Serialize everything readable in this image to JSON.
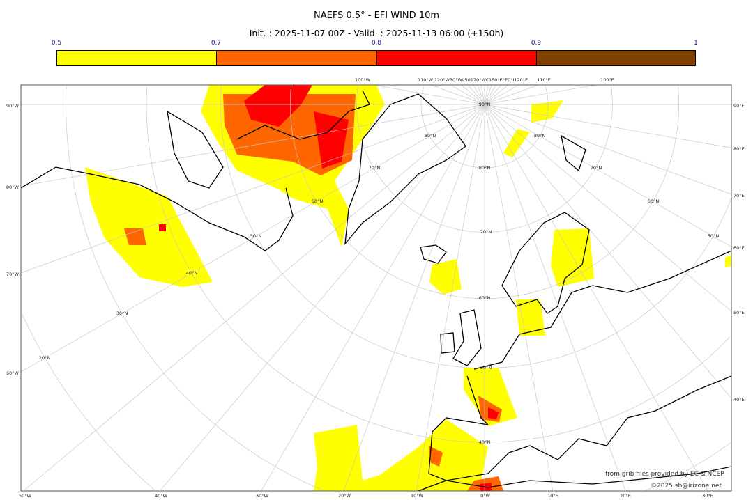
{
  "header": {
    "title": "NAEFS 0.5° - EFI WIND 10m",
    "subtitle": "Init. : 2025-11-07 00Z - Valid. : 2025-11-13 06:00 (+150h)"
  },
  "colorbar": {
    "labels": [
      "0.5",
      "0.7",
      "0.8",
      "0.9",
      "1"
    ],
    "bins": [
      {
        "from": 0.5,
        "to": 0.7,
        "color": "#ffff00"
      },
      {
        "from": 0.7,
        "to": 0.8,
        "color": "#ff6600"
      },
      {
        "from": 0.8,
        "to": 0.9,
        "color": "#ff0000"
      },
      {
        "from": 0.9,
        "to": 1.0,
        "color": "#804000"
      }
    ]
  },
  "map": {
    "projection": "polar stereographic",
    "left_labels": [
      "90°W",
      "80°W",
      "70°W",
      "60°W"
    ],
    "right_labels": [
      "90°E",
      "80°E",
      "70°E",
      "60°E",
      "50°E",
      "40°E"
    ],
    "bottom_labels": [
      "50°W",
      "40°W",
      "30°W",
      "20°W",
      "10°W",
      "0°W",
      "10°E",
      "20°E",
      "30°E"
    ],
    "top_labels": [
      "100°W",
      "110°W",
      "120°W30°WL50170°W€150°E°E0°I120°E",
      "110°E",
      "100°E"
    ],
    "lat_labels": [
      "90°N",
      "80°N",
      "80°N",
      "80°N",
      "70°N",
      "70°N",
      "70°N",
      "60°N",
      "60°N",
      "60°N",
      "50°N",
      "50°N",
      "50°N",
      "40°N",
      "40°N",
      "30°N",
      "20°N"
    ]
  },
  "credits": {
    "source": "from grib files provided by EC & NCEP",
    "copyright": "©2025 sb@irizone.net"
  }
}
